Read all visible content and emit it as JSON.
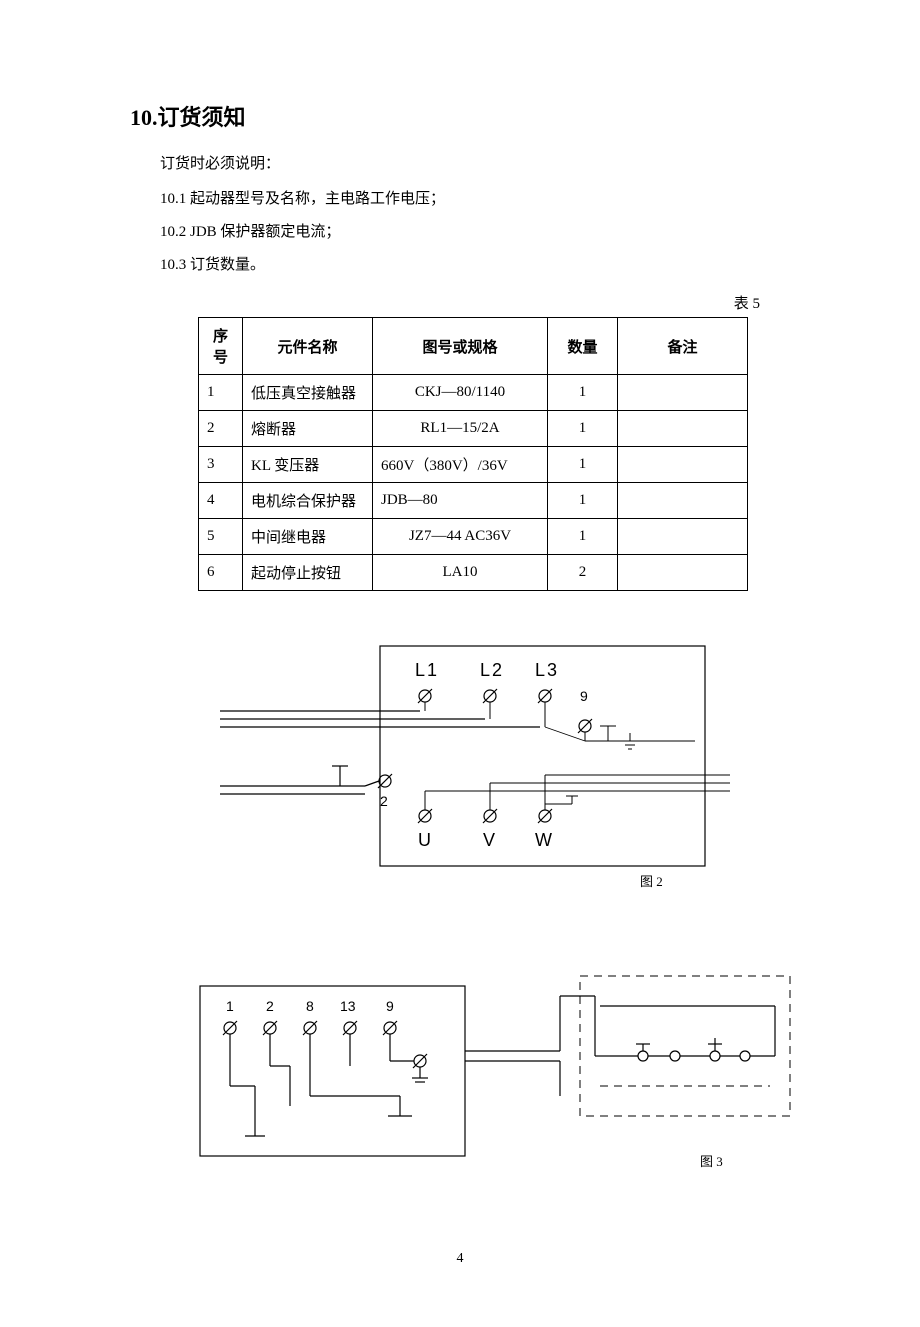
{
  "section": {
    "heading": "10.订货须知",
    "intro": "订货时必须说明：",
    "items": [
      "10.1 起动器型号及名称，主电路工作电压；",
      "10.2 JDB 保护器额定电流；",
      "10.3 订货数量。"
    ]
  },
  "table": {
    "label": "表 5",
    "headers": [
      "序号",
      "元件名称",
      "图号或规格",
      "数量",
      "备注"
    ],
    "rows": [
      {
        "seq": "1",
        "name": "低压真空接触器",
        "spec": "CKJ—80/1140",
        "qty": "1",
        "remark": ""
      },
      {
        "seq": "2",
        "name": "熔断器",
        "spec": "RL1—15/2A",
        "qty": "1",
        "remark": ""
      },
      {
        "seq": "3",
        "name": "KL 变压器",
        "spec": "660V（380V）/36V",
        "qty": "1",
        "remark": ""
      },
      {
        "seq": "4",
        "name": "电机综合保护器",
        "spec": "JDB—80",
        "qty": "1",
        "remark": ""
      },
      {
        "seq": "5",
        "name": "中间继电器",
        "spec": "JZ7—44 AC36V",
        "qty": "1",
        "remark": ""
      },
      {
        "seq": "6",
        "name": "起动停止按钮",
        "spec": "LA10",
        "qty": "2",
        "remark": ""
      }
    ]
  },
  "figure2": {
    "caption": "图 2",
    "top_labels": [
      "L1",
      "L2",
      "L3"
    ],
    "top_extra": "9",
    "side_label": "2",
    "bottom_labels": [
      "U",
      "V",
      "W"
    ]
  },
  "figure3": {
    "caption": "图 3",
    "terminals": [
      "1",
      "2",
      "8",
      "13",
      "9"
    ]
  },
  "page_number": "4",
  "colors": {
    "text": "#000000",
    "bg": "#ffffff"
  }
}
